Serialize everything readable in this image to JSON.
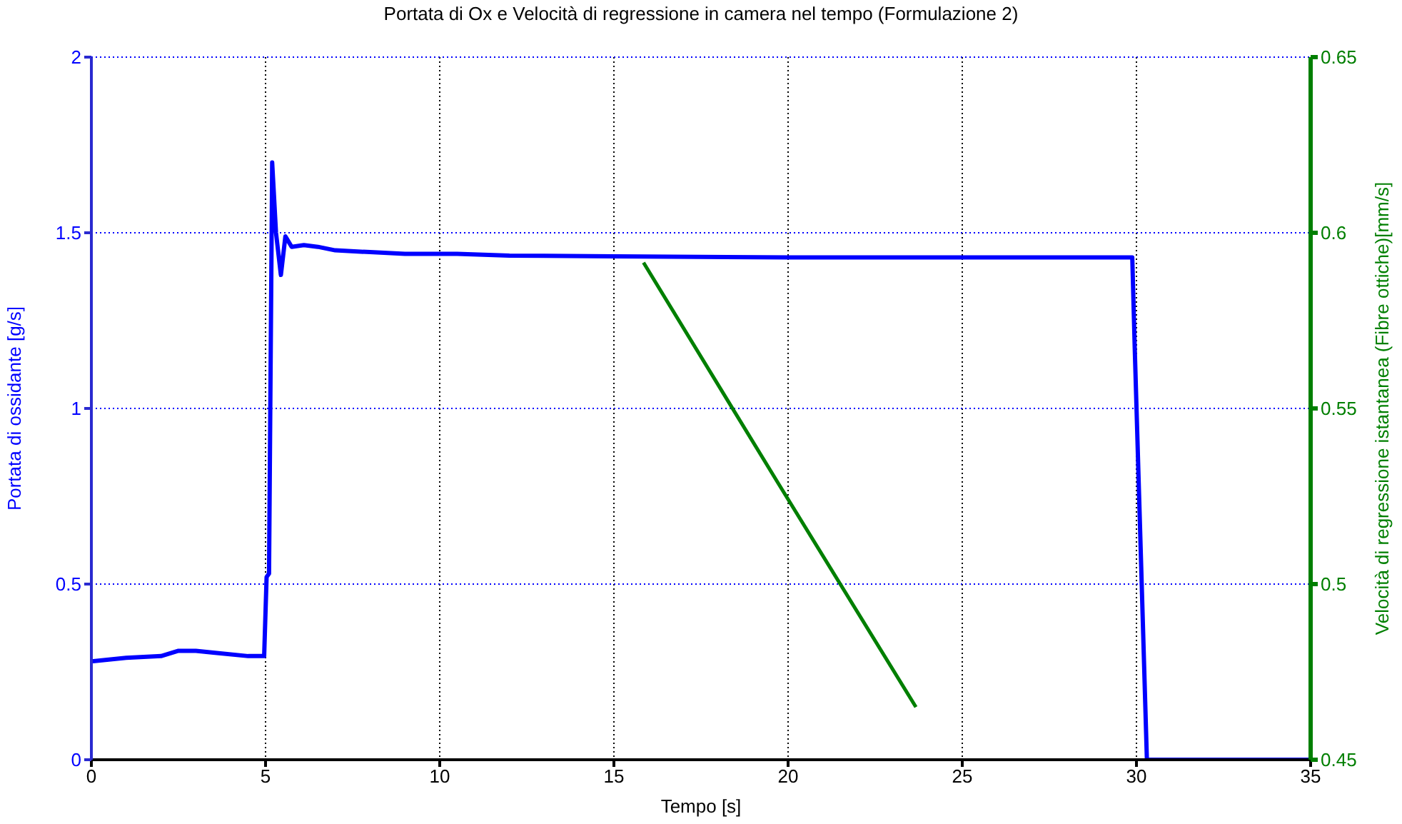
{
  "chart_data": {
    "type": "line",
    "title": "Portata di Ox e Velocità di regressione in camera nel tempo (Formulazione 2)",
    "xlabel": "Tempo [s]",
    "ylabel": "Portata di ossidante [g/s]",
    "y2label": "Velocità di regressione istantanea (Fibre ottiche)[mm/s]",
    "xlim": [
      0,
      35
    ],
    "xticks": [
      0,
      5,
      10,
      15,
      20,
      25,
      30,
      35
    ],
    "ylim": [
      0,
      2
    ],
    "yticks": [
      0,
      0.5,
      1,
      1.5,
      2
    ],
    "y2lim": [
      0.45,
      0.65
    ],
    "y2ticks": [
      0.45,
      0.5,
      0.55,
      0.6,
      0.65
    ],
    "grid": true,
    "series": [
      {
        "color": "#0000ff",
        "x": [
          0,
          0.5,
          1,
          2,
          2.5,
          3,
          3.5,
          4.5,
          4.96,
          5.03,
          5.1,
          5.19,
          5.3,
          5.44,
          5.57,
          5.75,
          6.1,
          6.5,
          7,
          8,
          9,
          10.5,
          12,
          15,
          20,
          25,
          29.88,
          29.95,
          30.3,
          35
        ],
        "values": [
          0.28,
          0.285,
          0.29,
          0.295,
          0.31,
          0.31,
          0.305,
          0.295,
          0.295,
          0.52,
          0.53,
          1.7,
          1.5,
          1.38,
          1.49,
          1.46,
          1.465,
          1.46,
          1.45,
          1.445,
          1.44,
          1.44,
          1.435,
          1.433,
          1.43,
          1.43,
          1.43,
          1.175,
          0,
          0
        ]
      },
      {
        "color": "#007f00",
        "axis": "y2",
        "x": [
          15.85,
          19.76,
          23.67
        ],
        "values": [
          0.5915,
          0.528,
          0.465
        ]
      }
    ]
  }
}
